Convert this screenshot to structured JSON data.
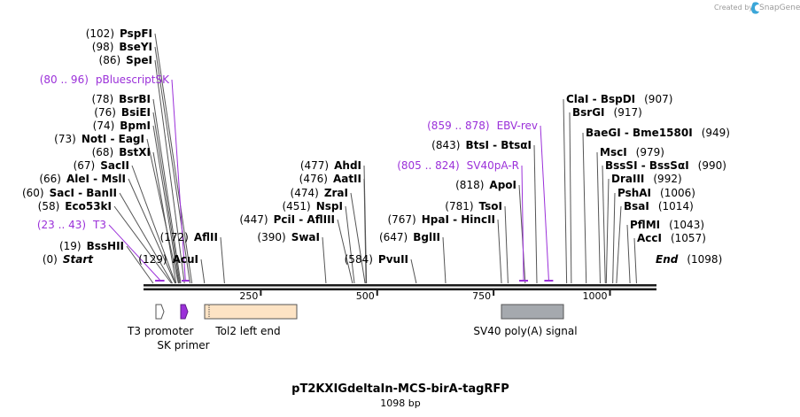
{
  "credit": {
    "prefix": "Created by",
    "brand": "SnapGene"
  },
  "title": "pT2KXIGdeltaIn-MCS-birA-tagRFP",
  "length_label": "1098 bp",
  "axis": {
    "start": 0,
    "end": 1098,
    "ticks": [
      {
        "value": 250,
        "label": "250"
      },
      {
        "value": 500,
        "label": "500"
      },
      {
        "value": 750,
        "label": "750"
      },
      {
        "value": 1000,
        "label": "1000"
      }
    ]
  },
  "colors": {
    "primer": "#9b30d9",
    "tol2": "#fde3c4",
    "sv40": "#a5a9ae",
    "backbone": "#1a1a1a"
  },
  "sites": [
    {
      "id": "pspfi",
      "pos": "(102)",
      "names": [
        "PspFI"
      ],
      "bp": 102
    },
    {
      "id": "bseyi",
      "pos": "(98)",
      "names": [
        "BseYI"
      ],
      "bp": 98
    },
    {
      "id": "spei",
      "pos": "(86)",
      "names": [
        "SpeI"
      ],
      "bp": 86
    },
    {
      "id": "bsrbi",
      "pos": "(78)",
      "names": [
        "BsrBI"
      ],
      "bp": 78
    },
    {
      "id": "bsiei",
      "pos": "(76)",
      "names": [
        "BsiEI"
      ],
      "bp": 76
    },
    {
      "id": "bpmi",
      "pos": "(74)",
      "names": [
        "BpmI"
      ],
      "bp": 74
    },
    {
      "id": "noti",
      "pos": "(73)",
      "names": [
        "NotI",
        "EagI"
      ],
      "bp": 73
    },
    {
      "id": "bstxi",
      "pos": "(68)",
      "names": [
        "BstXI"
      ],
      "bp": 68
    },
    {
      "id": "sacii",
      "pos": "(67)",
      "names": [
        "SacII"
      ],
      "bp": 67
    },
    {
      "id": "alei",
      "pos": "(66)",
      "names": [
        "AleI",
        "MslI"
      ],
      "bp": 66
    },
    {
      "id": "saci",
      "pos": "(60)",
      "names": [
        "SacI",
        "BanII"
      ],
      "bp": 60
    },
    {
      "id": "eco53ki",
      "pos": "(58)",
      "names": [
        "Eco53kI"
      ],
      "bp": 58
    },
    {
      "id": "bsshii",
      "pos": "(19)",
      "names": [
        "BssHII"
      ],
      "bp": 19
    },
    {
      "id": "start",
      "pos": "(0)",
      "names": [
        "Start"
      ],
      "bp": 0,
      "italic": true
    },
    {
      "id": "acui",
      "pos": "(129)",
      "names": [
        "AcuI"
      ],
      "bp": 129
    },
    {
      "id": "aflii",
      "pos": "(172)",
      "names": [
        "AflII"
      ],
      "bp": 172
    },
    {
      "id": "ahdi",
      "pos": "(477)",
      "names": [
        "AhdI"
      ],
      "bp": 477
    },
    {
      "id": "aatii",
      "pos": "(476)",
      "names": [
        "AatII"
      ],
      "bp": 476
    },
    {
      "id": "zrai",
      "pos": "(474)",
      "names": [
        "ZraI"
      ],
      "bp": 474
    },
    {
      "id": "nspi",
      "pos": "(451)",
      "names": [
        "NspI"
      ],
      "bp": 451
    },
    {
      "id": "pcii",
      "pos": "(447)",
      "names": [
        "PciI",
        "AflIII"
      ],
      "bp": 447
    },
    {
      "id": "swai",
      "pos": "(390)",
      "names": [
        "SwaI"
      ],
      "bp": 390
    },
    {
      "id": "pvuii",
      "pos": "(584)",
      "names": [
        "PvuII"
      ],
      "bp": 584
    },
    {
      "id": "bglii",
      "pos": "(647)",
      "names": [
        "BglII"
      ],
      "bp": 647
    },
    {
      "id": "hpai",
      "pos": "(767)",
      "names": [
        "HpaI",
        "HincII"
      ],
      "bp": 767
    },
    {
      "id": "tsoi",
      "pos": "(781)",
      "names": [
        "TsoI"
      ],
      "bp": 781
    },
    {
      "id": "apoi",
      "pos": "(818)",
      "names": [
        "ApoI"
      ],
      "bp": 818
    },
    {
      "id": "btsi",
      "pos": "(843)",
      "names": [
        "BtsI",
        "BtsαI"
      ],
      "bp": 843
    },
    {
      "id": "clai",
      "pos": "(907)",
      "names": [
        "ClaI",
        "BspDI"
      ],
      "bp": 907
    },
    {
      "id": "bsrgi",
      "pos": "(917)",
      "names": [
        "BsrGI"
      ],
      "bp": 917
    },
    {
      "id": "baegi",
      "pos": "(949)",
      "names": [
        "BaeGI",
        "Bme1580I"
      ],
      "bp": 949
    },
    {
      "id": "msci",
      "pos": "(979)",
      "names": [
        "MscI"
      ],
      "bp": 979
    },
    {
      "id": "bsssi",
      "pos": "(990)",
      "names": [
        "BssSI",
        "BssSαI"
      ],
      "bp": 990
    },
    {
      "id": "draiii",
      "pos": "(992)",
      "names": [
        "DraIII"
      ],
      "bp": 992
    },
    {
      "id": "pshai",
      "pos": "(1006)",
      "names": [
        "PshAI"
      ],
      "bp": 1006
    },
    {
      "id": "bsai",
      "pos": "(1014)",
      "names": [
        "BsaI"
      ],
      "bp": 1014
    },
    {
      "id": "pflmi",
      "pos": "(1043)",
      "names": [
        "PflMI"
      ],
      "bp": 1043
    },
    {
      "id": "acci",
      "pos": "(1057)",
      "names": [
        "AccI"
      ],
      "bp": 1057
    },
    {
      "id": "end",
      "pos": "(1098)",
      "names": [
        "End"
      ],
      "bp": 1098,
      "italic": true
    }
  ],
  "primers": [
    {
      "id": "pbluescriptsk",
      "range": "(80 .. 96)",
      "name": "pBluescriptSK",
      "start": 80,
      "end": 96
    },
    {
      "id": "t3",
      "range": "(23 .. 43)",
      "name": "T3",
      "start": 23,
      "end": 43
    },
    {
      "id": "ebv-rev",
      "range": "(859 .. 878)",
      "name": "EBV-rev",
      "start": 859,
      "end": 878
    },
    {
      "id": "sv40pa-r",
      "range": "(805 .. 824)",
      "name": "SV40pA-R",
      "start": 805,
      "end": 824
    }
  ],
  "features": [
    {
      "id": "t3-promoter",
      "name": "T3 promoter",
      "start": 25,
      "end": 43
    },
    {
      "id": "sk-primer",
      "name": "SK primer",
      "start": 80,
      "end": 96
    },
    {
      "id": "tol2-left-end",
      "name": "Tol2 left end",
      "start": 133,
      "end": 337
    },
    {
      "id": "sv40-polya",
      "name": "SV40 poly(A) signal",
      "start": 785,
      "end": 922
    }
  ]
}
